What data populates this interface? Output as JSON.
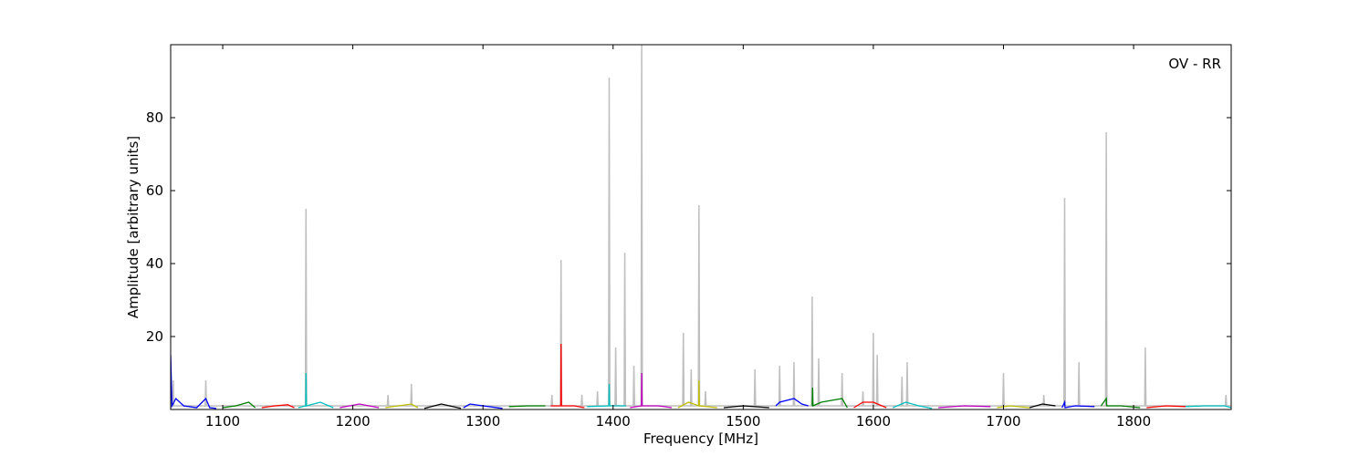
{
  "chart_data": {
    "type": "line",
    "xlabel": "Frequency [MHz]",
    "ylabel": "Amplitude [arbitrary units]",
    "annotation": "OV - RR",
    "xlim": [
      1060,
      1875
    ],
    "ylim": [
      0,
      100
    ],
    "xticks": [
      1100,
      1200,
      1300,
      1400,
      1500,
      1600,
      1700,
      1800
    ],
    "yticks": [
      20,
      40,
      60,
      80
    ],
    "series": [
      {
        "color": "#bfbfbf",
        "x": [
          1060,
          1061.5,
          1062,
          1062.5,
          1086.5,
          1087,
          1087.5,
          1163.5,
          1164,
          1164.5,
          1226.5,
          1227,
          1227.5,
          1244.5,
          1245,
          1245.5,
          1352.5,
          1353,
          1353.5,
          1359.5,
          1360,
          1360.5,
          1375.5,
          1376,
          1376.5,
          1387.5,
          1388,
          1388.5,
          1396.5,
          1397,
          1397.5,
          1401.5,
          1402,
          1402.5,
          1408.5,
          1409,
          1409.5,
          1415.5,
          1416,
          1416.5,
          1421.5,
          1422,
          1422.5,
          1453.5,
          1454,
          1454.5,
          1459.5,
          1460,
          1460.5,
          1465.5,
          1466,
          1466.5,
          1470.5,
          1471,
          1471.5,
          1508.5,
          1509,
          1509.5,
          1527.5,
          1528,
          1528.5,
          1538.5,
          1539,
          1539.5,
          1552.5,
          1553,
          1553.5,
          1557.5,
          1558,
          1558.5,
          1575.5,
          1576,
          1576.5,
          1591.5,
          1592,
          1592.5,
          1599.5,
          1600,
          1600.5,
          1602.5,
          1603,
          1603.5,
          1621.5,
          1622,
          1622.5,
          1625.5,
          1626,
          1626.5,
          1699.5,
          1700,
          1700.5,
          1730.5,
          1731,
          1731.5,
          1746.5,
          1747,
          1747.5,
          1757.5,
          1758,
          1758.5,
          1778.5,
          1779,
          1779.5,
          1808.5,
          1809,
          1809.5,
          1870.5,
          1871,
          1871.5,
          1875
        ],
        "values": [
          1,
          1,
          8,
          1,
          1,
          8,
          1,
          1,
          55,
          1,
          1,
          4,
          1,
          1,
          7,
          1,
          1,
          4,
          1,
          1,
          41,
          1,
          1,
          4,
          1,
          1,
          5,
          1,
          1,
          91,
          1,
          1,
          17,
          1,
          1,
          43,
          1,
          1,
          12,
          1,
          1,
          100,
          1,
          1,
          21,
          1,
          1,
          11,
          1,
          1,
          56,
          1,
          1,
          5,
          1,
          1,
          11,
          1,
          1,
          12,
          1,
          1,
          13,
          1,
          1,
          31,
          1,
          1,
          14,
          1,
          1,
          10,
          1,
          1,
          5,
          1,
          1,
          21,
          1,
          1,
          15,
          1,
          1,
          9,
          1,
          1,
          13,
          1,
          1,
          10,
          1,
          1,
          4,
          1,
          1,
          58,
          1,
          1,
          13,
          1,
          1,
          76,
          1,
          1,
          17,
          1,
          1,
          4,
          1,
          1
        ]
      },
      {
        "color": "#0000ff",
        "x": [
          1060,
          1061,
          1064,
          1070,
          1080,
          1087,
          1090,
          1095
        ],
        "values": [
          15,
          1,
          3,
          1,
          0.5,
          3,
          0.5,
          0.3
        ]
      },
      {
        "color": "#008000",
        "x": [
          1100,
          1110,
          1120,
          1125
        ],
        "values": [
          0.5,
          1,
          2,
          0.5
        ]
      },
      {
        "color": "#ff0000",
        "x": [
          1130,
          1140,
          1150,
          1155
        ],
        "values": [
          0.5,
          1,
          1.3,
          0.5
        ]
      },
      {
        "color": "#00bfbf",
        "x": [
          1158,
          1163.8,
          1164,
          1164.3,
          1175,
          1185
        ],
        "values": [
          0.5,
          1,
          10,
          1,
          2,
          0.5
        ]
      },
      {
        "color": "#bf00bf",
        "x": [
          1190,
          1205,
          1220
        ],
        "values": [
          0.5,
          1.5,
          0.5
        ]
      },
      {
        "color": "#bfbf00",
        "x": [
          1225,
          1235,
          1245,
          1250
        ],
        "values": [
          0.5,
          1,
          1.5,
          0.5
        ]
      },
      {
        "color": "#000000",
        "x": [
          1255,
          1268,
          1283
        ],
        "values": [
          0.3,
          1.5,
          0.3
        ]
      },
      {
        "color": "#0000ff",
        "x": [
          1285,
          1290,
          1300,
          1315
        ],
        "values": [
          0.5,
          1.5,
          1,
          0.3
        ]
      },
      {
        "color": "#008000",
        "x": [
          1320,
          1335,
          1348
        ],
        "values": [
          0.8,
          1,
          1
        ]
      },
      {
        "color": "#ff0000",
        "x": [
          1352,
          1359.8,
          1360,
          1360.3,
          1370,
          1378
        ],
        "values": [
          1,
          1,
          18,
          1,
          1,
          0.5
        ]
      },
      {
        "color": "#00bfbf",
        "x": [
          1380,
          1396.8,
          1397,
          1397.3,
          1410
        ],
        "values": [
          0.8,
          1,
          7,
          1,
          1
        ]
      },
      {
        "color": "#bf00bf",
        "x": [
          1413,
          1421.8,
          1422,
          1422.3,
          1435,
          1445
        ],
        "values": [
          0.5,
          1,
          10,
          1,
          1,
          0.5
        ]
      },
      {
        "color": "#bfbf00",
        "x": [
          1450,
          1458,
          1465.8,
          1466,
          1466.3,
          1480
        ],
        "values": [
          0.5,
          2,
          1,
          8,
          1,
          0.5
        ]
      },
      {
        "color": "#000000",
        "x": [
          1485,
          1500,
          1520
        ],
        "values": [
          0.5,
          1,
          0.5
        ]
      },
      {
        "color": "#0000ff",
        "x": [
          1525,
          1528,
          1539,
          1545,
          1550
        ],
        "values": [
          1,
          2,
          3,
          1.5,
          1
        ]
      },
      {
        "color": "#008000",
        "x": [
          1553,
          1553.3,
          1553.6,
          1560,
          1576,
          1580
        ],
        "values": [
          1,
          6,
          1,
          2,
          3,
          0.5
        ]
      },
      {
        "color": "#ff0000",
        "x": [
          1585,
          1592,
          1600,
          1610
        ],
        "values": [
          0.5,
          2,
          2,
          0.5
        ]
      },
      {
        "color": "#00bfbf",
        "x": [
          1615,
          1625,
          1635,
          1645
        ],
        "values": [
          0.5,
          2,
          1,
          0.3
        ]
      },
      {
        "color": "#bf00bf",
        "x": [
          1650,
          1670,
          1690
        ],
        "values": [
          0.5,
          1,
          0.8
        ]
      },
      {
        "color": "#bfbf00",
        "x": [
          1695,
          1705,
          1720
        ],
        "values": [
          0.5,
          1,
          0.5
        ]
      },
      {
        "color": "#000000",
        "x": [
          1720,
          1730,
          1740
        ],
        "values": [
          0.5,
          1.5,
          1
        ]
      },
      {
        "color": "#0000ff",
        "x": [
          1745,
          1747,
          1747.3,
          1755,
          1770
        ],
        "values": [
          0.5,
          2,
          0.5,
          1,
          0.8
        ]
      },
      {
        "color": "#008000",
        "x": [
          1775,
          1779,
          1779.3,
          1790,
          1805
        ],
        "values": [
          1,
          3,
          1,
          1,
          0.5
        ]
      },
      {
        "color": "#ff0000",
        "x": [
          1810,
          1825,
          1840
        ],
        "values": [
          0.5,
          1,
          0.8
        ]
      },
      {
        "color": "#00bfbf",
        "x": [
          1840,
          1855,
          1870,
          1875
        ],
        "values": [
          0.8,
          1,
          1,
          0.5
        ]
      }
    ]
  }
}
